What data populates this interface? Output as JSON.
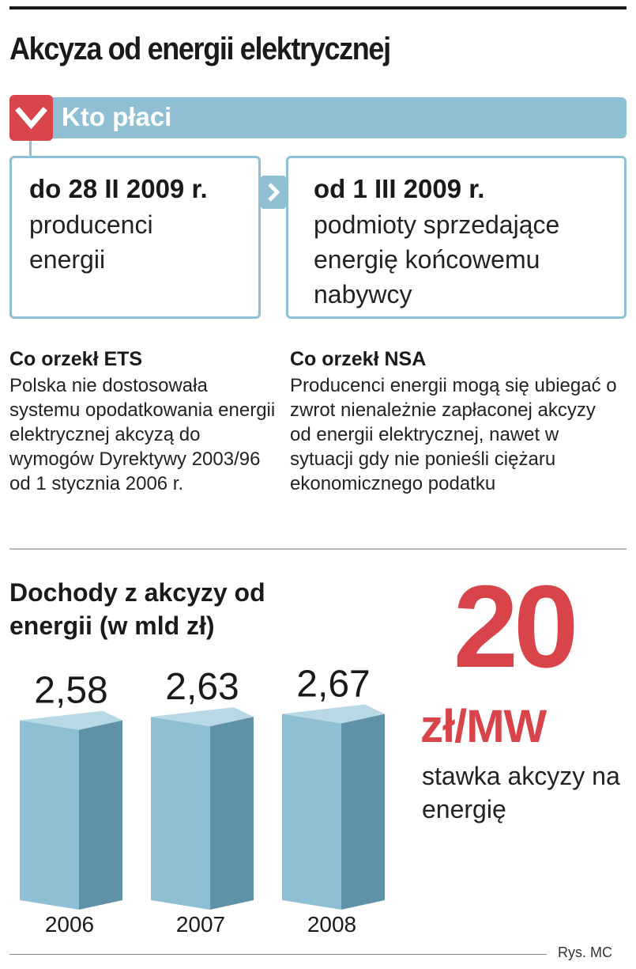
{
  "title": "Akcyza od energii elektrycznej",
  "who_pays": {
    "label": "Kto płaci",
    "before": {
      "date": "do 28 II 2009 r.",
      "desc": "producenci energii"
    },
    "after": {
      "date": "od 1 III 2009 r.",
      "desc": "podmioty sprzedające energię końcowemu nabywcy"
    }
  },
  "rulings": {
    "ets": {
      "heading": "Co orzekł ETS",
      "text": "Polska nie dostosowała systemu opodatkowania energii elektrycznej akcyzą do wymogów Dyrektywy 2003/96 od 1 stycznia 2006 r."
    },
    "nsa": {
      "heading": "Co orzekł NSA",
      "text": "Producenci energii mogą się ubiegać o zwrot nienależnie zapłaconej akcyzy od energii elektrycznej, nawet w sytuacji gdy nie ponieśli ciężaru ekonomicznego podatku"
    }
  },
  "rate": {
    "value": "20",
    "unit": "zł/MW",
    "desc": "stawka akcyzy na energię"
  },
  "source": "Rys. MC",
  "colors": {
    "accent_red": "#d9444a",
    "bar_front": "#8fbfd3",
    "bar_side": "#5f92a8",
    "bar_top": "#b9d8e5"
  },
  "chart_data": {
    "type": "bar",
    "title": "Dochody z akcyzy od energii (w mld zł)",
    "categories": [
      "2006",
      "2007",
      "2008"
    ],
    "values": [
      2.58,
      2.63,
      2.67
    ],
    "value_labels": [
      "2,58",
      "2,63",
      "2,67"
    ],
    "xlabel": "",
    "ylabel": "",
    "grid": false,
    "legend": "none"
  }
}
